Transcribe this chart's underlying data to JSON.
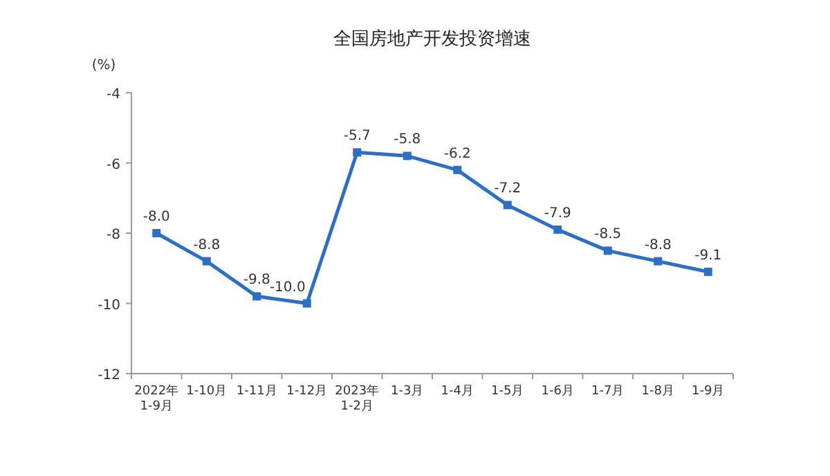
{
  "chart_data": {
    "type": "line",
    "title": "全国房地产开发投资增速",
    "ylabel": "(%)",
    "categories": [
      "2022年\n1-9月",
      "1-10月",
      "1-11月",
      "1-12月",
      "2023年\n1-2月",
      "1-3月",
      "1-4月",
      "1-5月",
      "1-6月",
      "1-7月",
      "1-8月",
      "1-9月"
    ],
    "series": [
      {
        "color": "#2e6fc4",
        "values": [
          -8.0,
          -8.8,
          -9.8,
          -10.0,
          -5.7,
          -5.8,
          -6.2,
          -7.2,
          -7.9,
          -8.5,
          -8.8,
          -9.1
        ],
        "value_labels": [
          "-8.0",
          "-8.8",
          "-9.8",
          "-10.0",
          "-5.7",
          "-5.8",
          "-6.2",
          "-7.2",
          "-7.9",
          "-8.5",
          "-8.8",
          "-9.1"
        ]
      }
    ],
    "ylim": [
      -12,
      -4
    ],
    "yticks": [
      -12,
      -10,
      -8,
      -6,
      -4
    ],
    "marker": "square",
    "line_style": "solid",
    "grid": false
  }
}
